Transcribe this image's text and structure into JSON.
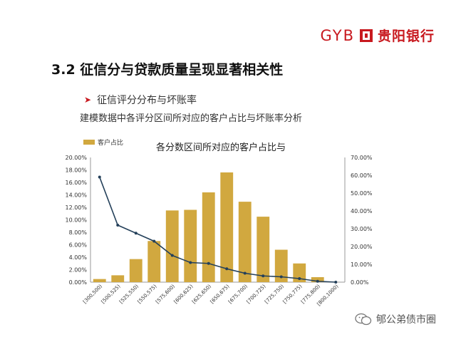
{
  "logo": {
    "latin": "GYB",
    "chinese": "贵阳银行"
  },
  "slide": {
    "title": "3.2 征信分与贷款质量呈现显著相关性",
    "bullet": "征信评分分布与坏账率",
    "subtitle": "建模数据中各评分区间所对应的客户占比与坏账率分析"
  },
  "watermark": {
    "text": "郇公弟债市圈"
  },
  "colors": {
    "bar": "#d1a83f",
    "line": "#24405a",
    "brand": "#c8191f"
  },
  "chart_data": {
    "type": "bar",
    "title": "各分数区间所对应的客户占比与",
    "legend_position": "top-left",
    "categories": [
      "[300,500)",
      "[500,525)",
      "[525,550)",
      "[550,575)",
      "[575,600)",
      "[600,625)",
      "[625,650)",
      "[650,675)",
      "[675,700)",
      "[700,725)",
      "[725,750)",
      "[750,775)",
      "[775,800)",
      "[800,1000)"
    ],
    "series": [
      {
        "name": "客户占比",
        "type": "bar",
        "axis": "left",
        "values": [
          0.5,
          1.1,
          3.7,
          6.6,
          11.5,
          11.6,
          14.4,
          17.6,
          12.9,
          10.5,
          5.2,
          3.0,
          0.8,
          0.0
        ]
      },
      {
        "type": "line",
        "axis": "right",
        "values": [
          59.0,
          32.0,
          27.5,
          23.0,
          15.0,
          11.0,
          10.5,
          7.5,
          5.0,
          3.5,
          3.0,
          2.0,
          0.5,
          0.0
        ]
      }
    ],
    "y_left": {
      "min": 0,
      "max": 20,
      "step": 2,
      "ticks": [
        "0.00%",
        "2.00%",
        "4.00%",
        "6.00%",
        "8.00%",
        "10.00%",
        "12.00%",
        "14.00%",
        "16.00%",
        "18.00%",
        "20.00%"
      ]
    },
    "y_right": {
      "min": 0,
      "max": 70,
      "step": 10,
      "ticks": [
        "0.00%",
        "10.00%",
        "20.00%",
        "30.00%",
        "40.00%",
        "50.00%",
        "60.00%",
        "70.00%"
      ]
    },
    "grid": false
  }
}
